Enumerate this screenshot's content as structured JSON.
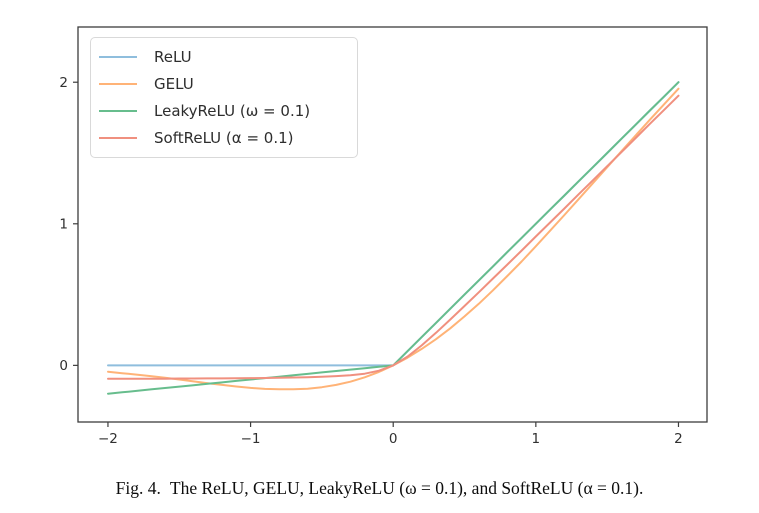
{
  "caption": {
    "label": "Fig. 4.",
    "text": "The ReLU, GELU, LeakyReLU (ω = 0.1), and SoftReLU (α = 0.1)."
  },
  "chart_data": {
    "type": "line",
    "title": "",
    "xlabel": "",
    "ylabel": "",
    "grid": false,
    "legend_position": "upper left",
    "xlim": [
      -2.21,
      2.2
    ],
    "ylim": [
      -0.4,
      2.39
    ],
    "xticks": {
      "values": [
        -2,
        -1,
        0,
        1,
        2
      ],
      "labels": [
        "−2",
        "−1",
        "0",
        "1",
        "2"
      ]
    },
    "yticks": {
      "values": [
        0,
        1,
        2
      ],
      "labels": [
        "0",
        "1",
        "2"
      ]
    },
    "axis_color": "#3d3d3d",
    "x": [
      -2.0,
      -1.9,
      -1.8,
      -1.7,
      -1.6,
      -1.5,
      -1.4,
      -1.3,
      -1.2,
      -1.1,
      -1.0,
      -0.9,
      -0.8,
      -0.7,
      -0.6,
      -0.5,
      -0.4,
      -0.3,
      -0.2,
      -0.1,
      0.0,
      0.1,
      0.2,
      0.3,
      0.4,
      0.5,
      0.6,
      0.7,
      0.8,
      0.9,
      1.0,
      1.1,
      1.2,
      1.3,
      1.4,
      1.5,
      1.6,
      1.7,
      1.8,
      1.9,
      2.0
    ],
    "series": [
      {
        "name": "ReLU",
        "label": "ReLU",
        "color": "#8fbedd",
        "values": [
          0,
          0,
          0,
          0,
          0,
          0,
          0,
          0,
          0,
          0,
          0,
          0,
          0,
          0,
          0,
          0,
          0,
          0,
          0,
          0,
          0,
          0.1,
          0.2,
          0.3,
          0.4,
          0.5,
          0.6,
          0.7,
          0.8,
          0.9,
          1.0,
          1.1,
          1.2,
          1.3,
          1.4,
          1.5,
          1.6,
          1.7,
          1.8,
          1.9,
          2.0
        ]
      },
      {
        "name": "GELU",
        "label": "GELU",
        "color": "#ffb377",
        "values": [
          -0.045,
          -0.055,
          -0.065,
          -0.076,
          -0.088,
          -0.1,
          -0.113,
          -0.126,
          -0.138,
          -0.149,
          -0.159,
          -0.166,
          -0.169,
          -0.169,
          -0.165,
          -0.154,
          -0.138,
          -0.115,
          -0.084,
          -0.046,
          0,
          0.054,
          0.116,
          0.185,
          0.262,
          0.346,
          0.435,
          0.531,
          0.631,
          0.734,
          0.841,
          0.951,
          1.062,
          1.174,
          1.287,
          1.4,
          1.512,
          1.624,
          1.735,
          1.845,
          1.954
        ]
      },
      {
        "name": "LeakyReLU",
        "label": "LeakyReLU (ω = 0.1)",
        "color": "#67bd8d",
        "values": [
          -0.2,
          -0.19,
          -0.18,
          -0.17,
          -0.16,
          -0.15,
          -0.14,
          -0.13,
          -0.12,
          -0.11,
          -0.1,
          -0.09,
          -0.08,
          -0.07,
          -0.06,
          -0.05,
          -0.04,
          -0.03,
          -0.02,
          -0.01,
          0,
          0.1,
          0.2,
          0.3,
          0.4,
          0.5,
          0.6,
          0.7,
          0.8,
          0.9,
          1.0,
          1.1,
          1.2,
          1.3,
          1.4,
          1.5,
          1.6,
          1.7,
          1.8,
          1.9,
          2.0
        ]
      },
      {
        "name": "SoftReLU",
        "label": "SoftReLU (α = 0.1)",
        "color": "#f0907f",
        "values": [
          -0.095,
          -0.095,
          -0.094,
          -0.094,
          -0.094,
          -0.093,
          -0.093,
          -0.092,
          -0.092,
          -0.091,
          -0.09,
          -0.089,
          -0.088,
          -0.086,
          -0.084,
          -0.081,
          -0.076,
          -0.07,
          -0.059,
          -0.038,
          0,
          0.062,
          0.141,
          0.23,
          0.324,
          0.419,
          0.516,
          0.614,
          0.712,
          0.811,
          0.91,
          1.009,
          1.108,
          1.208,
          1.307,
          1.407,
          1.506,
          1.606,
          1.706,
          1.805,
          1.905
        ]
      }
    ]
  }
}
